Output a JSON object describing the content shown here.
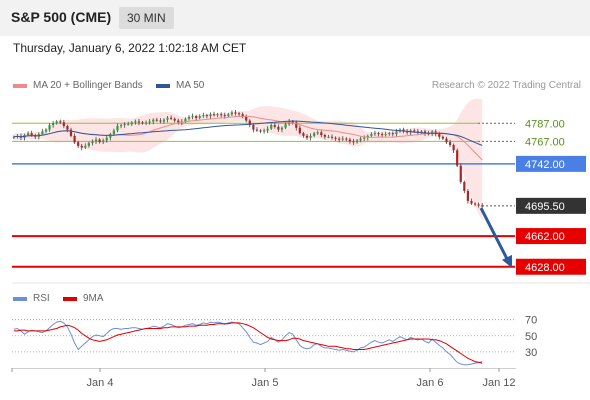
{
  "header": {
    "title": "S&P 500 (CME)",
    "timeframe": "30 MIN"
  },
  "timestamp": "Thursday, January 6, 2022 1:02:18 AM CET",
  "legend": {
    "ma20": {
      "label": "MA 20 + Bollinger Bands",
      "color": "#f08a8a"
    },
    "ma50": {
      "label": "MA 50",
      "color": "#2f5597"
    }
  },
  "credit": "Research © 2022 Trading Central",
  "rsi_legend": {
    "rsi": {
      "label": "RSI",
      "color": "#6b8fdc"
    },
    "ma9": {
      "label": "9MA",
      "color": "#e00000"
    }
  },
  "chart_data": [
    {
      "type": "candlestick",
      "ylim": [
        4610,
        4815
      ],
      "x_labels": [
        "Jan 4",
        "Jan 5",
        "Jan 6",
        "Jan 12"
      ],
      "current_price": 4695.5,
      "price_levels": [
        {
          "value": 4787.0,
          "label": "4787.00",
          "kind": "resistance",
          "color": "#8fc43f"
        },
        {
          "value": 4767.0,
          "label": "4767.00",
          "kind": "resistance",
          "color": "#8fc43f"
        },
        {
          "value": 4742.0,
          "label": "4742.00",
          "kind": "pivot",
          "color": "#4a7fe6"
        },
        {
          "value": 4695.5,
          "label": "4695.50",
          "kind": "last",
          "color": "#333333"
        },
        {
          "value": 4662.0,
          "label": "4662.00",
          "kind": "support",
          "color": "#e60000"
        },
        {
          "value": 4628.0,
          "label": "4628.00",
          "kind": "support",
          "color": "#e60000"
        }
      ],
      "forecast_arrow": {
        "from": 4693,
        "to": 4629,
        "color": "#2b5a9e"
      },
      "close_series": [
        4772,
        4773,
        4771,
        4774,
        4776,
        4774,
        4772,
        4775,
        4778,
        4780,
        4785,
        4787,
        4789,
        4788,
        4784,
        4780,
        4773,
        4766,
        4762,
        4760,
        4762,
        4765,
        4767,
        4769,
        4766,
        4768,
        4771,
        4775,
        4779,
        4784,
        4785,
        4786,
        4786,
        4788,
        4789,
        4788,
        4787,
        4788,
        4789,
        4791,
        4790,
        4789,
        4791,
        4793,
        4792,
        4790,
        4788,
        4789,
        4792,
        4794,
        4795,
        4793,
        4795,
        4796,
        4795,
        4797,
        4796,
        4797,
        4796,
        4795,
        4797,
        4799,
        4798,
        4797,
        4794,
        4790,
        4785,
        4780,
        4779,
        4778,
        4779,
        4781,
        4785,
        4783,
        4780,
        4782,
        4786,
        4789,
        4788,
        4782,
        4776,
        4773,
        4771,
        4773,
        4776,
        4777,
        4774,
        4772,
        4772,
        4771,
        4770,
        4769,
        4770,
        4769,
        4767,
        4766,
        4768,
        4770,
        4771,
        4773,
        4775,
        4776,
        4775,
        4774,
        4775,
        4776,
        4775,
        4778,
        4780,
        4778,
        4777,
        4779,
        4778,
        4777,
        4778,
        4776,
        4775,
        4778,
        4775,
        4772,
        4770,
        4766,
        4763,
        4757,
        4740,
        4722,
        4712,
        4701,
        4698,
        4697,
        4696,
        4695.5
      ]
    },
    {
      "type": "line",
      "title": "RSI",
      "ylim": [
        10,
        82
      ],
      "y_ticks": [
        70,
        50,
        30
      ],
      "series": [
        {
          "name": "RSI",
          "color": "#6b8fdc",
          "values": [
            58,
            59,
            56,
            52,
            55,
            57,
            56,
            55,
            54,
            56,
            60,
            64,
            67,
            68,
            66,
            61,
            52,
            41,
            33,
            37,
            41,
            45,
            49,
            51,
            50,
            49,
            53,
            57,
            59,
            59,
            58,
            59,
            59,
            60,
            60,
            59,
            58,
            59,
            60,
            62,
            61,
            60,
            62,
            65,
            64,
            62,
            60,
            61,
            63,
            64,
            65,
            63,
            64,
            66,
            65,
            67,
            66,
            67,
            66,
            64,
            66,
            67,
            66,
            65,
            60,
            55,
            48,
            42,
            41,
            39,
            41,
            43,
            48,
            45,
            42,
            45,
            50,
            54,
            52,
            45,
            38,
            35,
            34,
            35,
            39,
            40,
            37,
            35,
            35,
            34,
            33,
            32,
            33,
            32,
            31,
            30,
            32,
            35,
            36,
            39,
            42,
            44,
            42,
            41,
            43,
            45,
            43,
            46,
            49,
            47,
            45,
            48,
            46,
            45,
            46,
            43,
            41,
            46,
            42,
            38,
            35,
            30,
            27,
            22,
            17,
            15,
            14,
            14,
            15,
            16,
            17,
            18
          ]
        },
        {
          "name": "9MA",
          "color": "#e00000",
          "values": [
            56,
            56,
            57,
            57,
            56,
            56,
            56,
            56,
            56,
            56,
            57,
            58,
            59,
            61,
            62,
            63,
            62,
            60,
            57,
            53,
            50,
            47,
            45,
            44,
            43,
            44,
            45,
            47,
            49,
            51,
            52,
            53,
            54,
            55,
            56,
            57,
            58,
            59,
            59,
            59,
            59,
            59,
            60,
            60,
            61,
            61,
            61,
            61,
            61,
            62,
            62,
            62,
            63,
            63,
            63,
            64,
            64,
            65,
            65,
            65,
            65,
            66,
            66,
            66,
            65,
            64,
            62,
            60,
            57,
            54,
            51,
            48,
            46,
            45,
            44,
            44,
            44,
            45,
            47,
            47,
            46,
            44,
            43,
            42,
            41,
            40,
            39,
            38,
            37,
            37,
            37,
            36,
            35,
            34,
            34,
            33,
            33,
            33,
            33,
            34,
            35,
            36,
            37,
            38,
            39,
            40,
            41,
            42,
            43,
            44,
            45,
            46,
            46,
            46,
            46,
            46,
            46,
            45,
            45,
            44,
            42,
            40,
            37,
            34,
            31,
            28,
            25,
            22,
            20,
            18,
            17,
            16
          ]
        }
      ]
    }
  ]
}
